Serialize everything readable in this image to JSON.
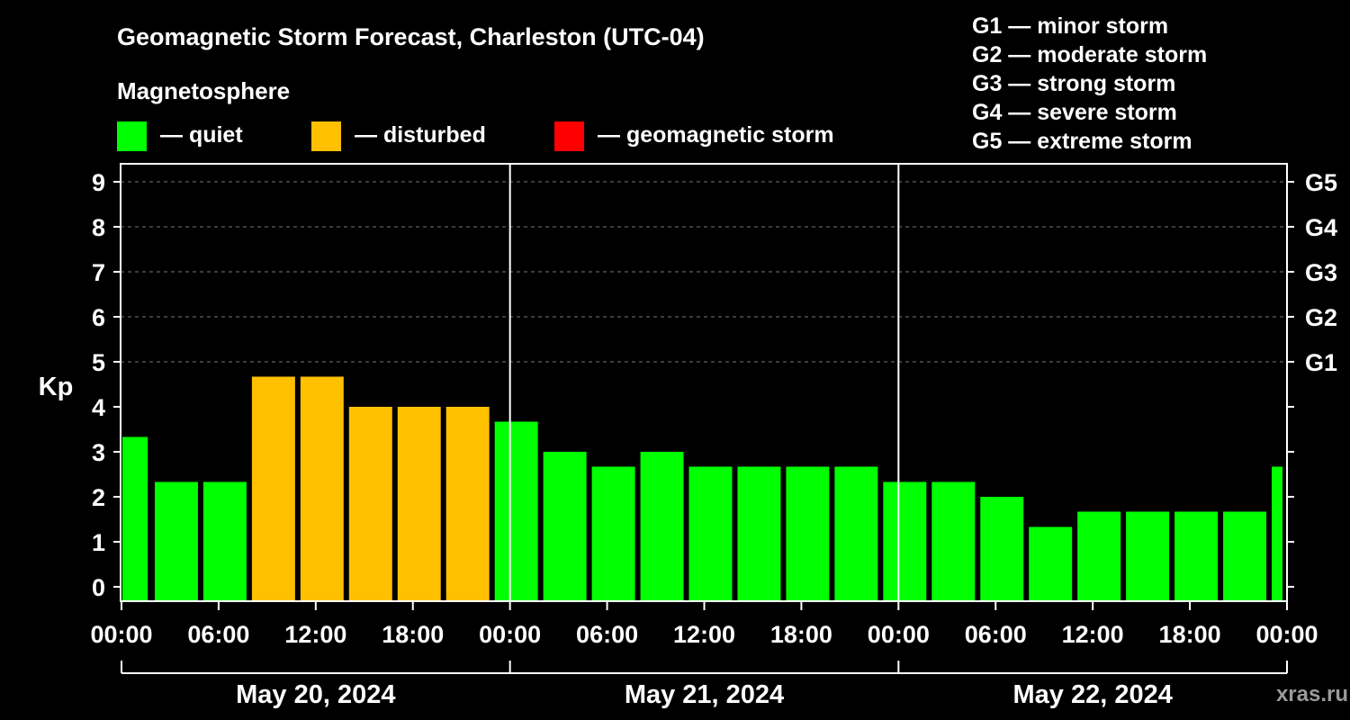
{
  "chart_data": {
    "type": "bar",
    "title": "Geomagnetic Storm Forecast, Charleston (UTC-04)",
    "ylabel": "Kp",
    "ylim": [
      0,
      9.5
    ],
    "y_ticks": [
      "0",
      "1",
      "2",
      "3",
      "4",
      "5",
      "6",
      "7",
      "8",
      "9"
    ],
    "g_scale_ticks": [
      {
        "kp": 5,
        "label": "G1"
      },
      {
        "kp": 6,
        "label": "G2"
      },
      {
        "kp": 7,
        "label": "G3"
      },
      {
        "kp": 8,
        "label": "G4"
      },
      {
        "kp": 9,
        "label": "G5"
      }
    ],
    "x_range_hours": [
      0,
      72
    ],
    "x_tick_labels": [
      "00:00",
      "06:00",
      "12:00",
      "18:00",
      "00:00",
      "06:00",
      "12:00",
      "18:00",
      "00:00",
      "06:00",
      "12:00",
      "18:00",
      "00:00"
    ],
    "day_labels": [
      "May 20, 2024",
      "May 21, 2024",
      "May 22, 2024"
    ],
    "bars": [
      {
        "start": 0,
        "end": 1.9,
        "kp": 3.33,
        "level": "quiet"
      },
      {
        "start": 2,
        "end": 5,
        "kp": 2.33,
        "level": "quiet"
      },
      {
        "start": 5,
        "end": 8,
        "kp": 2.33,
        "level": "quiet"
      },
      {
        "start": 8,
        "end": 11,
        "kp": 4.67,
        "level": "disturbed"
      },
      {
        "start": 11,
        "end": 14,
        "kp": 4.67,
        "level": "disturbed"
      },
      {
        "start": 14,
        "end": 17,
        "kp": 4.0,
        "level": "disturbed"
      },
      {
        "start": 17,
        "end": 20,
        "kp": 4.0,
        "level": "disturbed"
      },
      {
        "start": 20,
        "end": 23,
        "kp": 4.0,
        "level": "disturbed"
      },
      {
        "start": 23,
        "end": 26,
        "kp": 3.67,
        "level": "quiet"
      },
      {
        "start": 26,
        "end": 29,
        "kp": 3.0,
        "level": "quiet"
      },
      {
        "start": 29,
        "end": 32,
        "kp": 2.67,
        "level": "quiet"
      },
      {
        "start": 32,
        "end": 35,
        "kp": 3.0,
        "level": "quiet"
      },
      {
        "start": 35,
        "end": 38,
        "kp": 2.67,
        "level": "quiet"
      },
      {
        "start": 38,
        "end": 41,
        "kp": 2.67,
        "level": "quiet"
      },
      {
        "start": 41,
        "end": 44,
        "kp": 2.67,
        "level": "quiet"
      },
      {
        "start": 44,
        "end": 47,
        "kp": 2.67,
        "level": "quiet"
      },
      {
        "start": 47,
        "end": 50,
        "kp": 2.33,
        "level": "quiet"
      },
      {
        "start": 50,
        "end": 53,
        "kp": 2.33,
        "level": "quiet"
      },
      {
        "start": 53,
        "end": 56,
        "kp": 2.0,
        "level": "quiet"
      },
      {
        "start": 56,
        "end": 59,
        "kp": 1.33,
        "level": "quiet"
      },
      {
        "start": 59,
        "end": 62,
        "kp": 1.67,
        "level": "quiet"
      },
      {
        "start": 62,
        "end": 65,
        "kp": 1.67,
        "level": "quiet"
      },
      {
        "start": 65,
        "end": 68,
        "kp": 1.67,
        "level": "quiet"
      },
      {
        "start": 68,
        "end": 71,
        "kp": 1.67,
        "level": "quiet"
      },
      {
        "start": 71,
        "end": 72,
        "kp": 2.67,
        "level": "quiet"
      }
    ],
    "legend_title": "Magnetosphere",
    "legend": [
      {
        "key": "quiet",
        "label": "— quiet",
        "color": "#00ff00"
      },
      {
        "key": "disturbed",
        "label": "— disturbed",
        "color": "#ffc000"
      },
      {
        "key": "storm",
        "label": "— geomagnetic storm",
        "color": "#ff0000"
      }
    ],
    "g_scale_legend": [
      "G1 — minor storm",
      "G2 — moderate storm",
      "G3 — strong storm",
      "G4 — severe storm",
      "G5 — extreme storm"
    ],
    "watermark": "xras.ru"
  }
}
